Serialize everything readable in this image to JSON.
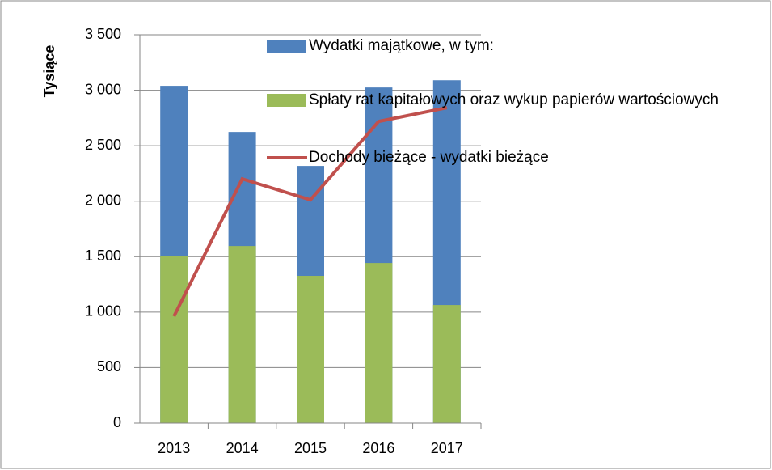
{
  "chart_data": {
    "type": "bar",
    "ylabel": "Tysiące",
    "categories": [
      "2013",
      "2014",
      "2015",
      "2016",
      "2017"
    ],
    "series": [
      {
        "name": "Wydatki majątkowe, w tym:",
        "type": "bar",
        "color": "#4f81bd",
        "values": [
          3040,
          2624,
          2318,
          3025,
          3090
        ]
      },
      {
        "name": "Spłaty rat kapitałowych oraz wykup papierów wartościowych",
        "type": "bar",
        "color": "#9bbb59",
        "values": [
          1509,
          1596,
          1327,
          1443,
          1064
        ]
      },
      {
        "name": "Dochody bieżące - wydatki bieżące",
        "type": "line",
        "color": "#c0504d",
        "values": [
          962,
          2201,
          2012,
          2719,
          2843
        ]
      }
    ],
    "ylim": [
      0,
      3500
    ],
    "yticks": [
      0,
      500,
      {
        "value": 1000,
        "label": "1 000"
      },
      {
        "value": 1500,
        "label": "1 500"
      },
      {
        "value": 2000,
        "label": "2 000"
      },
      {
        "value": 2500,
        "label": "2 500"
      },
      {
        "value": 3000,
        "label": "3 000"
      },
      {
        "value": 3500,
        "label": "3 500"
      }
    ],
    "grid": true
  }
}
